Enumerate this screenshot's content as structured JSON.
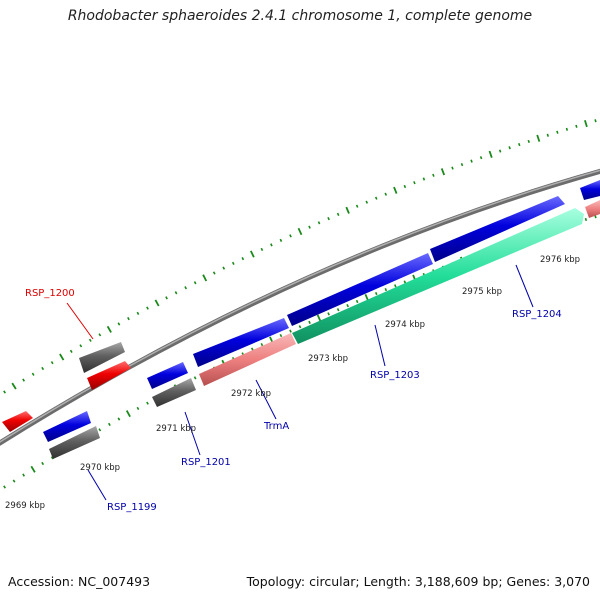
{
  "title": "Rhodobacter sphaeroides 2.4.1 chromosome 1, complete genome",
  "footer": {
    "accession": "Accession: NC_007493",
    "summary": "Topology: circular; Length: 3,188,609 bp; Genes: 3,070"
  },
  "colors": {
    "backbone": "#808080",
    "tick": "#1a8a1a",
    "forward_gene": "#0000dd",
    "reverse_gene": "#606060",
    "red_gene": "#ee0000",
    "trna": "#ee8080",
    "rrna": "#22dd99",
    "label_blue": "#0000aa",
    "label_red": "#dd0000"
  },
  "kbp_labels": [
    "2969 kbp",
    "2970 kbp",
    "2971 kbp",
    "2972 kbp",
    "2973 kbp",
    "2974 kbp",
    "2975 kbp",
    "2976 kbp"
  ],
  "genes": [
    {
      "name": "RSP_1199",
      "type": "forward",
      "label_color": "blue"
    },
    {
      "name": "RSP_1200",
      "type": "red",
      "label_color": "red"
    },
    {
      "name": "RSP_1201",
      "type": "forward",
      "label_color": "blue"
    },
    {
      "name": "TrmA",
      "type": "trna",
      "label_color": "blue"
    },
    {
      "name": "RSP_1203",
      "type": "rrna",
      "label_color": "blue"
    },
    {
      "name": "RSP_1204",
      "type": "forward",
      "label_color": "blue"
    }
  ]
}
